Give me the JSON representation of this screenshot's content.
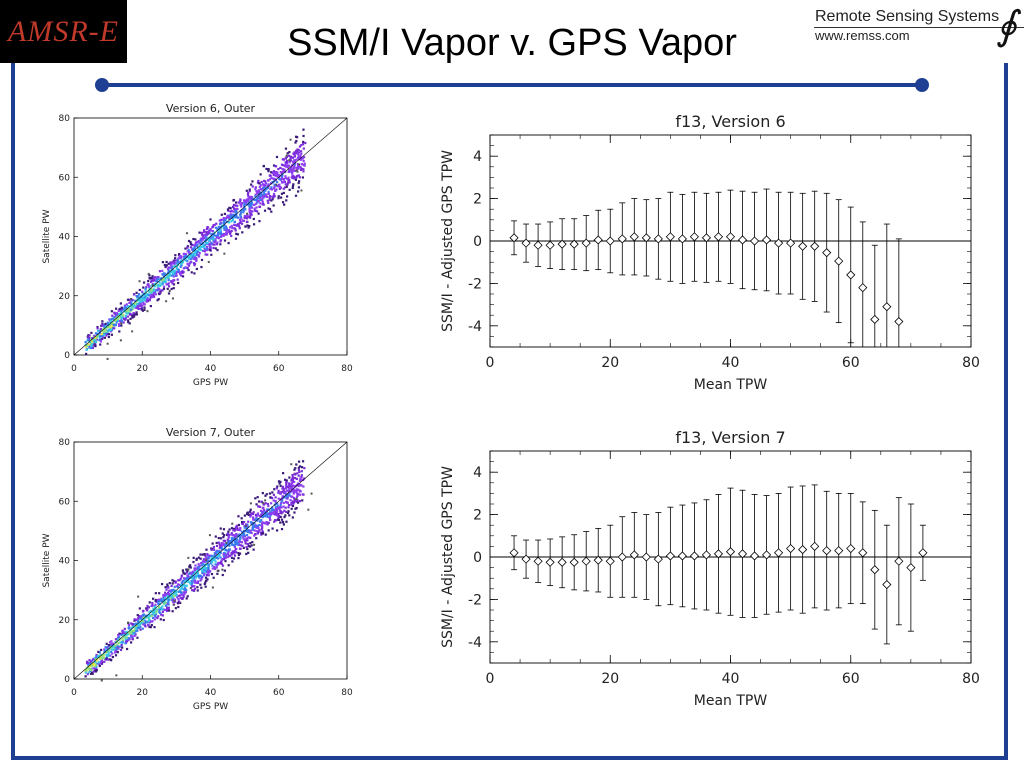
{
  "header": {
    "logo_text": "AMSR-E",
    "title": "SSM/I Vapor v. GPS Vapor",
    "org_name": "Remote Sensing Systems",
    "org_url": "www.remss.com"
  },
  "colors": {
    "frame": "#1f3f93",
    "logo_bg": "#000000",
    "logo_text": "#c0392b"
  },
  "chart_data": [
    {
      "type": "scatter",
      "title": "Version 6, Outer",
      "xlabel": "GPS PW",
      "ylabel": "Satellite PW",
      "xlim": [
        0,
        80
      ],
      "ylim": [
        0,
        80
      ],
      "xticks": [
        0,
        20,
        40,
        60,
        80
      ],
      "yticks": [
        0,
        20,
        40,
        60,
        80
      ],
      "style": "density",
      "colormap": [
        "#3a1a78",
        "#7a2bd8",
        "#8e3cf0",
        "#3b7bf0",
        "#36c8e6",
        "#8fe07a",
        "#f0e24a"
      ],
      "diagonal": [
        [
          0,
          0
        ],
        [
          80,
          80
        ]
      ]
    },
    {
      "type": "line",
      "title": "f13, Version 6",
      "xlabel": "Mean TPW",
      "ylabel": "SSM/I - Adjusted GPS TPW",
      "xlim": [
        0,
        80
      ],
      "ylim": [
        -5,
        5
      ],
      "xticks": [
        0,
        20,
        40,
        60,
        80
      ],
      "yticks": [
        -4,
        -2,
        0,
        2,
        4
      ],
      "zero_line": true,
      "x": [
        4,
        6,
        8,
        10,
        12,
        14,
        16,
        18,
        20,
        22,
        24,
        26,
        28,
        30,
        32,
        34,
        36,
        38,
        40,
        42,
        44,
        46,
        48,
        50,
        52,
        54,
        56,
        58,
        60,
        62,
        64,
        66,
        68
      ],
      "y": [
        0.15,
        -0.1,
        -0.2,
        -0.2,
        -0.15,
        -0.15,
        -0.1,
        0.05,
        0.0,
        0.1,
        0.2,
        0.15,
        0.1,
        0.2,
        0.1,
        0.2,
        0.15,
        0.2,
        0.2,
        0.05,
        0.0,
        0.05,
        -0.1,
        -0.1,
        -0.25,
        -0.25,
        -0.55,
        -0.95,
        -1.6,
        -2.2,
        -3.7,
        -3.1,
        -3.8
      ],
      "err": [
        0.8,
        0.9,
        1.0,
        1.1,
        1.2,
        1.2,
        1.3,
        1.4,
        1.5,
        1.7,
        1.8,
        1.8,
        1.9,
        2.1,
        2.1,
        2.1,
        2.1,
        2.1,
        2.2,
        2.3,
        2.3,
        2.4,
        2.4,
        2.4,
        2.5,
        2.6,
        2.8,
        2.9,
        3.2,
        3.1,
        3.5,
        3.9,
        3.9
      ]
    },
    {
      "type": "scatter",
      "title": "Version 7, Outer",
      "xlabel": "GPS PW",
      "ylabel": "Satellite PW",
      "xlim": [
        0,
        80
      ],
      "ylim": [
        0,
        80
      ],
      "xticks": [
        0,
        20,
        40,
        60,
        80
      ],
      "yticks": [
        0,
        20,
        40,
        60,
        80
      ],
      "style": "density",
      "colormap": [
        "#3a1a78",
        "#7a2bd8",
        "#8e3cf0",
        "#3b7bf0",
        "#36c8e6",
        "#8fe07a",
        "#f0e24a"
      ],
      "diagonal": [
        [
          0,
          0
        ],
        [
          80,
          80
        ]
      ]
    },
    {
      "type": "line",
      "title": "f13, Version 7",
      "xlabel": "Mean TPW",
      "ylabel": "SSM/I - Adjusted GPS TPW",
      "xlim": [
        0,
        80
      ],
      "ylim": [
        -5,
        5
      ],
      "xticks": [
        0,
        20,
        40,
        60,
        80
      ],
      "yticks": [
        -4,
        -2,
        0,
        2,
        4
      ],
      "zero_line": true,
      "x": [
        4,
        6,
        8,
        10,
        12,
        14,
        16,
        18,
        20,
        22,
        24,
        26,
        28,
        30,
        32,
        34,
        36,
        38,
        40,
        42,
        44,
        46,
        48,
        50,
        52,
        54,
        56,
        58,
        60,
        62,
        64,
        66,
        68,
        70,
        72
      ],
      "y": [
        0.2,
        -0.1,
        -0.2,
        -0.25,
        -0.25,
        -0.25,
        -0.2,
        -0.15,
        -0.2,
        0.0,
        0.1,
        0.0,
        -0.1,
        0.05,
        0.05,
        0.05,
        0.1,
        0.15,
        0.25,
        0.15,
        0.05,
        0.1,
        0.2,
        0.4,
        0.35,
        0.5,
        0.3,
        0.3,
        0.4,
        0.2,
        -0.6,
        -1.3,
        -0.2,
        -0.5,
        0.2
      ],
      "err": [
        0.8,
        0.9,
        1.0,
        1.1,
        1.2,
        1.3,
        1.4,
        1.5,
        1.7,
        1.9,
        2.0,
        2.0,
        2.2,
        2.3,
        2.4,
        2.5,
        2.6,
        2.8,
        3.0,
        3.0,
        2.9,
        2.8,
        2.8,
        2.9,
        3.0,
        2.9,
        2.8,
        2.7,
        2.6,
        2.4,
        2.8,
        2.8,
        3.0,
        3.0,
        1.3
      ]
    }
  ]
}
